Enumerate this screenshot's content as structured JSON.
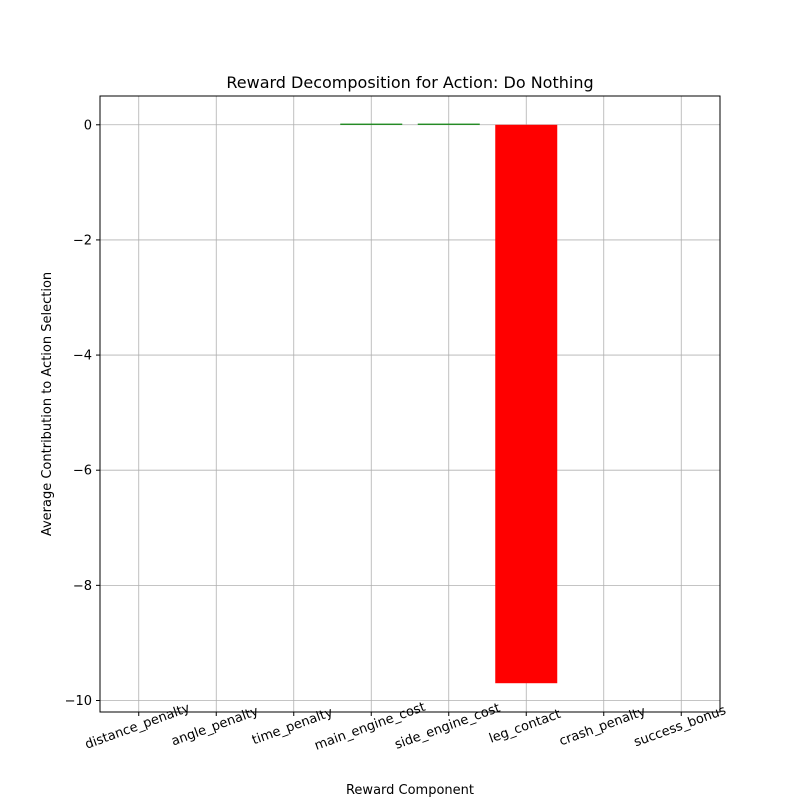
{
  "chart_data": {
    "type": "bar",
    "title": "Reward Decomposition for Action: Do Nothing",
    "xlabel": "Reward Component",
    "ylabel": "Average Contribution to Action Selection",
    "categories": [
      "distance_penalty",
      "angle_penalty",
      "time_penalty",
      "main_engine_cost",
      "side_engine_cost",
      "leg_contact",
      "crash_penalty",
      "success_bonus"
    ],
    "values": [
      0,
      0,
      0,
      0.02,
      0.02,
      -9.7,
      0,
      0
    ],
    "ylim": [
      -10.2,
      0.5
    ],
    "yticks": [
      0,
      -2,
      -4,
      -6,
      -8,
      -10
    ],
    "ytick_labels": [
      "0",
      "−2",
      "−4",
      "−6",
      "−8",
      "−10"
    ],
    "grid": true,
    "colors": {
      "positive": "#008000",
      "negative": "#ff0000"
    }
  }
}
